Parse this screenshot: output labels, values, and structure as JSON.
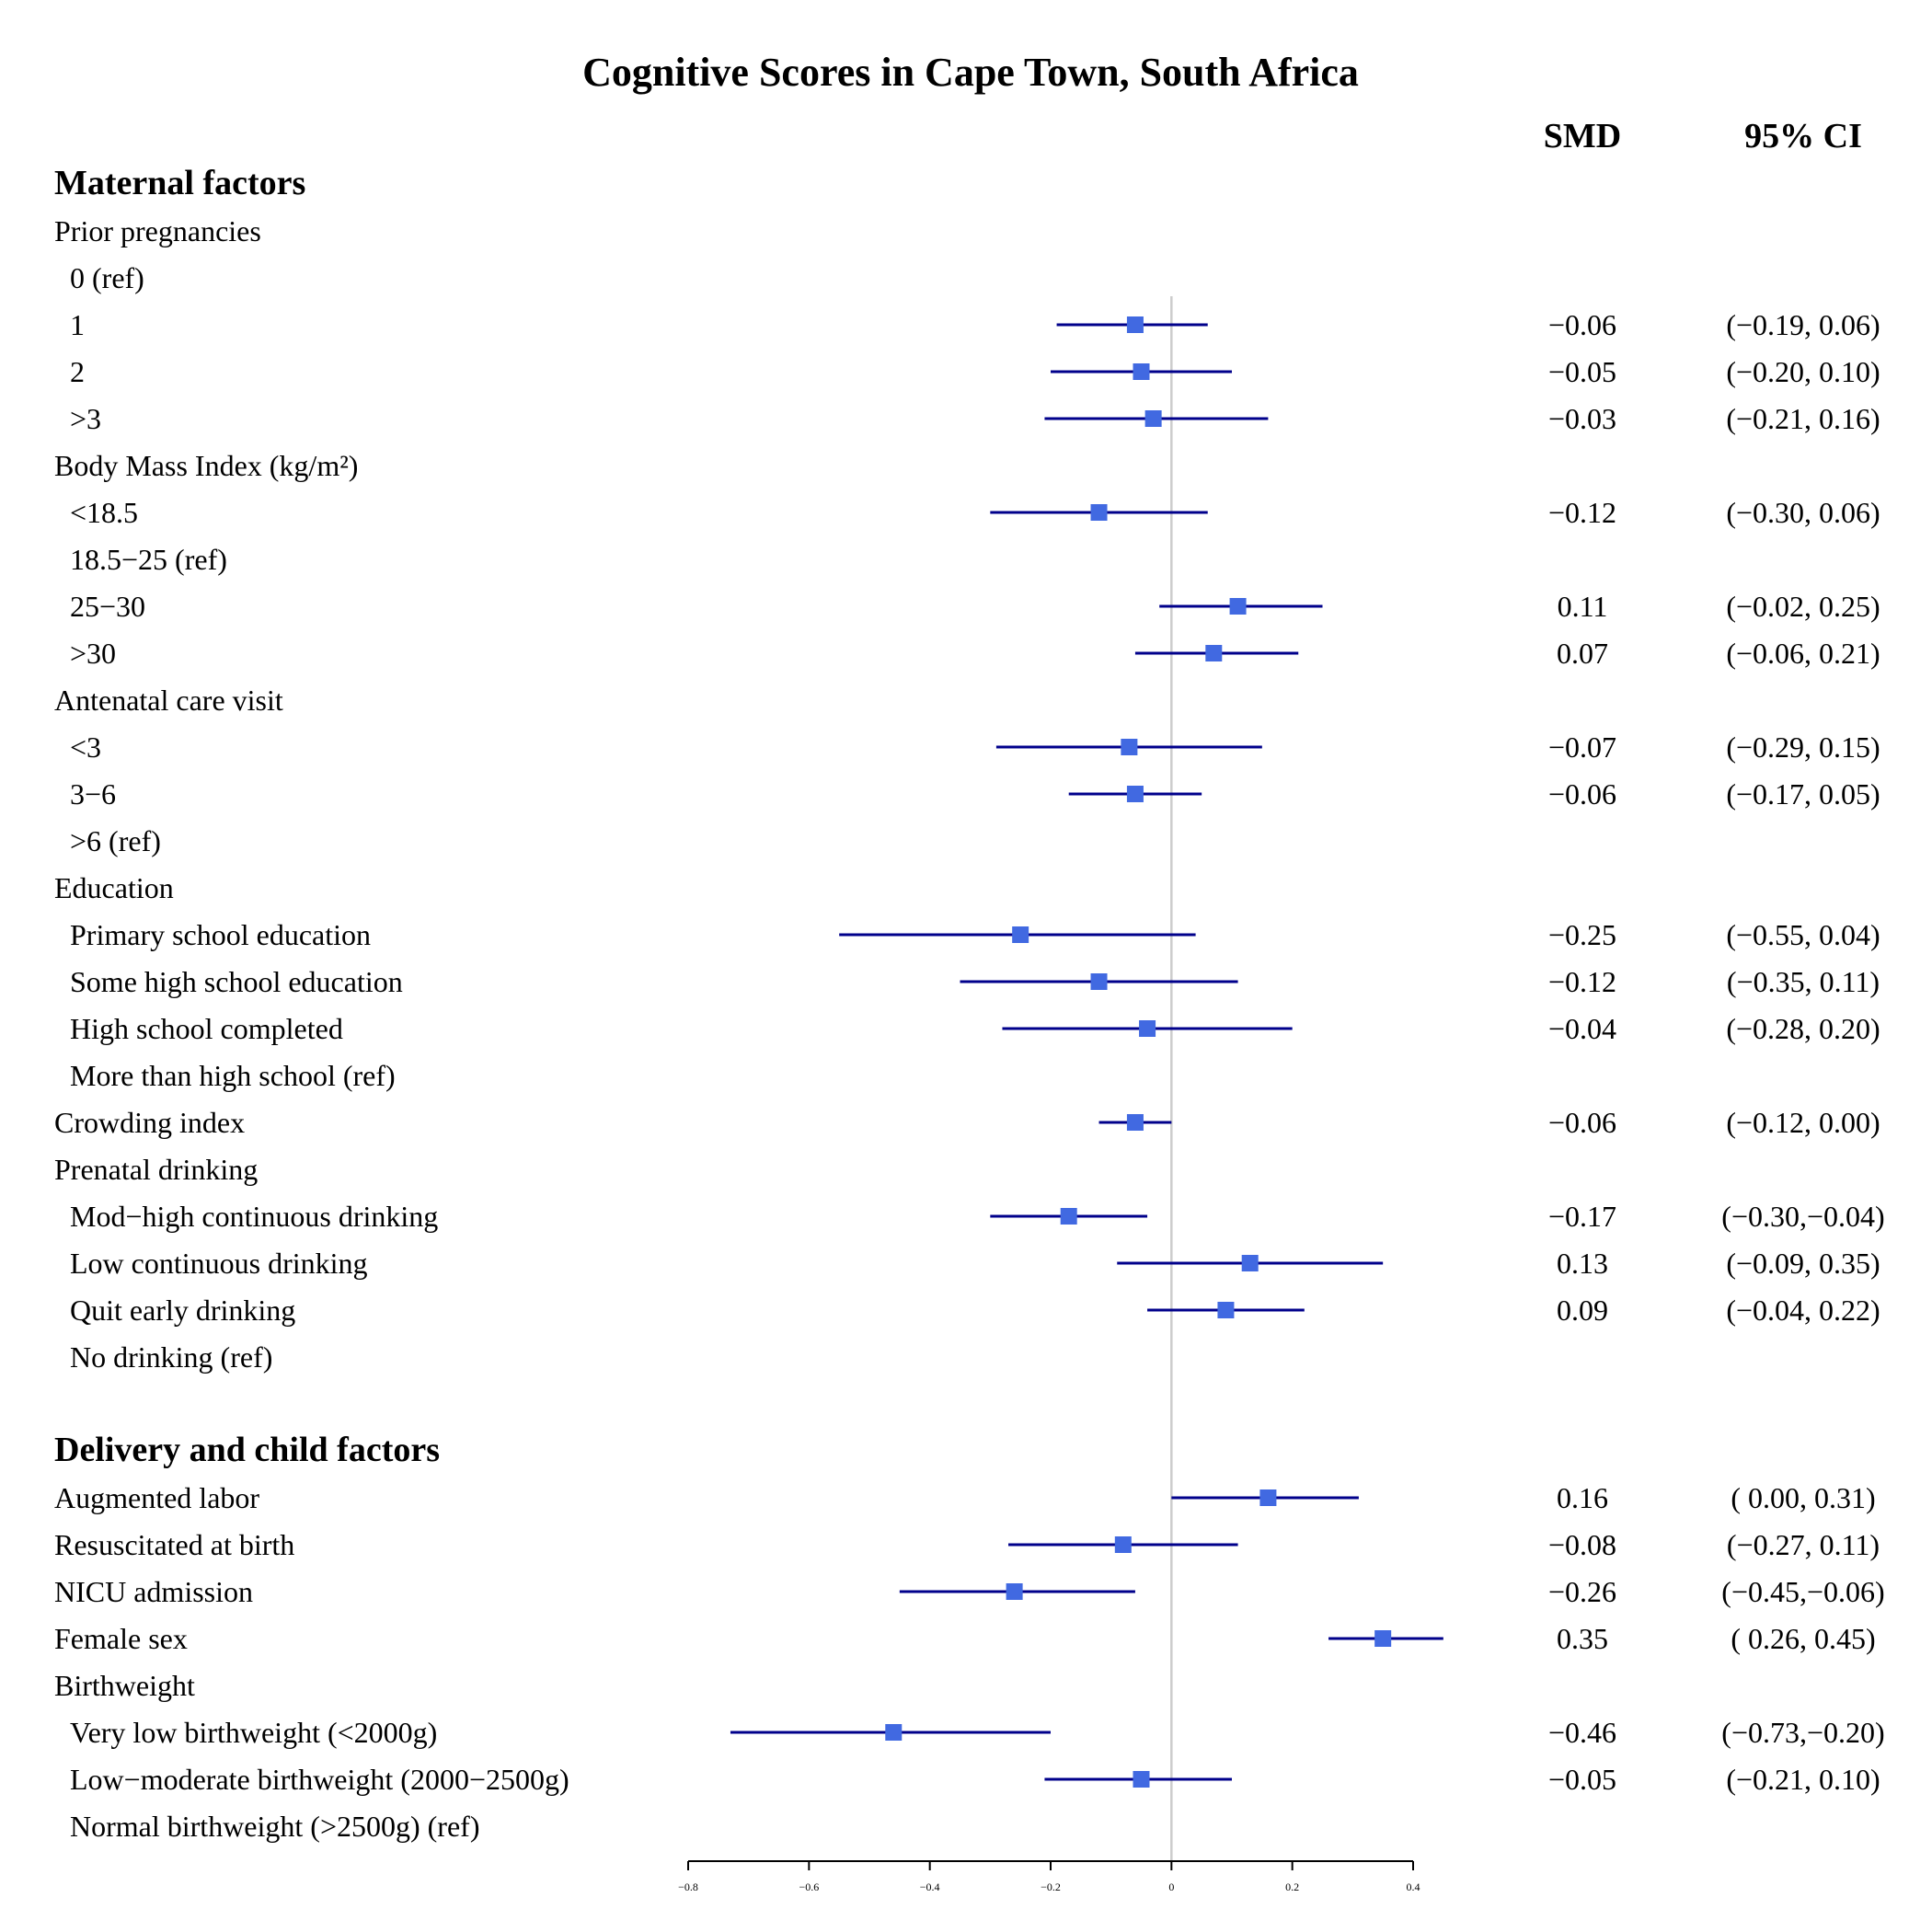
{
  "chart_data": {
    "type": "forest",
    "title": "Cognitive Scores in Cape Town, South Africa",
    "column_headers": {
      "smd": "SMD",
      "ci": "95% CI"
    },
    "xlim": [
      -0.8,
      0.4
    ],
    "xticks": [
      "−0.8",
      "−0.6",
      "−0.4",
      "−0.2",
      "0",
      "0.2",
      "0.4"
    ],
    "xtick_values": [
      -0.8,
      -0.6,
      -0.4,
      -0.2,
      0,
      0.2,
      0.4
    ],
    "reference_line": 0,
    "marker_color": "#4169E1",
    "line_color": "#00008B",
    "reference_line_color": "#cccccc",
    "rows": [
      {
        "label": "Maternal factors",
        "kind": "section"
      },
      {
        "label": "Prior pregnancies",
        "kind": "group"
      },
      {
        "label": "0 (ref)",
        "kind": "item"
      },
      {
        "label": "1",
        "kind": "item",
        "smd": -0.06,
        "lo": -0.19,
        "hi": 0.06,
        "smd_text": "−0.06",
        "ci_text": "(−0.19, 0.06)"
      },
      {
        "label": "2",
        "kind": "item",
        "smd": -0.05,
        "lo": -0.2,
        "hi": 0.1,
        "smd_text": "−0.05",
        "ci_text": "(−0.20, 0.10)"
      },
      {
        "label": ">3",
        "kind": "item",
        "smd": -0.03,
        "lo": -0.21,
        "hi": 0.16,
        "smd_text": "−0.03",
        "ci_text": "(−0.21, 0.16)"
      },
      {
        "label": "Body Mass Index (kg/m²)",
        "kind": "group"
      },
      {
        "label": "<18.5",
        "kind": "item",
        "smd": -0.12,
        "lo": -0.3,
        "hi": 0.06,
        "smd_text": "−0.12",
        "ci_text": "(−0.30, 0.06)"
      },
      {
        "label": "18.5−25 (ref)",
        "kind": "item"
      },
      {
        "label": "25−30",
        "kind": "item",
        "smd": 0.11,
        "lo": -0.02,
        "hi": 0.25,
        "smd_text": "0.11",
        "ci_text": "(−0.02, 0.25)"
      },
      {
        "label": ">30",
        "kind": "item",
        "smd": 0.07,
        "lo": -0.06,
        "hi": 0.21,
        "smd_text": "0.07",
        "ci_text": "(−0.06, 0.21)"
      },
      {
        "label": "Antenatal care visit",
        "kind": "group"
      },
      {
        "label": "<3",
        "kind": "item",
        "smd": -0.07,
        "lo": -0.29,
        "hi": 0.15,
        "smd_text": "−0.07",
        "ci_text": "(−0.29, 0.15)"
      },
      {
        "label": "3−6",
        "kind": "item",
        "smd": -0.06,
        "lo": -0.17,
        "hi": 0.05,
        "smd_text": "−0.06",
        "ci_text": "(−0.17, 0.05)"
      },
      {
        "label": ">6 (ref)",
        "kind": "item"
      },
      {
        "label": "Education",
        "kind": "group"
      },
      {
        "label": "Primary school education",
        "kind": "item",
        "smd": -0.25,
        "lo": -0.55,
        "hi": 0.04,
        "smd_text": "−0.25",
        "ci_text": "(−0.55, 0.04)"
      },
      {
        "label": "Some high school education",
        "kind": "item",
        "smd": -0.12,
        "lo": -0.35,
        "hi": 0.11,
        "smd_text": "−0.12",
        "ci_text": "(−0.35, 0.11)"
      },
      {
        "label": "High school completed",
        "kind": "item",
        "smd": -0.04,
        "lo": -0.28,
        "hi": 0.2,
        "smd_text": "−0.04",
        "ci_text": "(−0.28, 0.20)"
      },
      {
        "label": "More than high school (ref)",
        "kind": "item"
      },
      {
        "label": "Crowding index",
        "kind": "group",
        "smd": -0.06,
        "lo": -0.12,
        "hi": 0.0,
        "smd_text": "−0.06",
        "ci_text": "(−0.12, 0.00)"
      },
      {
        "label": "Prenatal drinking",
        "kind": "group"
      },
      {
        "label": "Mod−high continuous drinking",
        "kind": "item",
        "smd": -0.17,
        "lo": -0.3,
        "hi": -0.04,
        "smd_text": "−0.17",
        "ci_text": "(−0.30,−0.04)"
      },
      {
        "label": "Low continuous drinking",
        "kind": "item",
        "smd": 0.13,
        "lo": -0.09,
        "hi": 0.35,
        "smd_text": "0.13",
        "ci_text": "(−0.09, 0.35)"
      },
      {
        "label": "Quit early drinking",
        "kind": "item",
        "smd": 0.09,
        "lo": -0.04,
        "hi": 0.22,
        "smd_text": "0.09",
        "ci_text": "(−0.04, 0.22)"
      },
      {
        "label": "No drinking (ref)",
        "kind": "item"
      },
      {
        "label": "",
        "kind": "blank"
      },
      {
        "label": "Delivery and child factors",
        "kind": "section"
      },
      {
        "label": "Augmented labor",
        "kind": "group",
        "smd": 0.16,
        "lo": 0.0,
        "hi": 0.31,
        "smd_text": "0.16",
        "ci_text": "( 0.00, 0.31)"
      },
      {
        "label": "Resuscitated at birth",
        "kind": "group",
        "smd": -0.08,
        "lo": -0.27,
        "hi": 0.11,
        "smd_text": "−0.08",
        "ci_text": "(−0.27, 0.11)"
      },
      {
        "label": "NICU admission",
        "kind": "group",
        "smd": -0.26,
        "lo": -0.45,
        "hi": -0.06,
        "smd_text": "−0.26",
        "ci_text": "(−0.45,−0.06)"
      },
      {
        "label": "Female sex",
        "kind": "group",
        "smd": 0.35,
        "lo": 0.26,
        "hi": 0.45,
        "smd_text": "0.35",
        "ci_text": "( 0.26, 0.45)"
      },
      {
        "label": "Birthweight",
        "kind": "group"
      },
      {
        "label": "Very low birthweight (<2000g)",
        "kind": "item",
        "smd": -0.46,
        "lo": -0.73,
        "hi": -0.2,
        "smd_text": "−0.46",
        "ci_text": "(−0.73,−0.20)"
      },
      {
        "label": "Low−moderate birthweight (2000−2500g)",
        "kind": "item",
        "smd": -0.05,
        "lo": -0.21,
        "hi": 0.1,
        "smd_text": "−0.05",
        "ci_text": "(−0.21, 0.10)"
      },
      {
        "label": "Normal birthweight (>2500g) (ref)",
        "kind": "item"
      }
    ]
  }
}
